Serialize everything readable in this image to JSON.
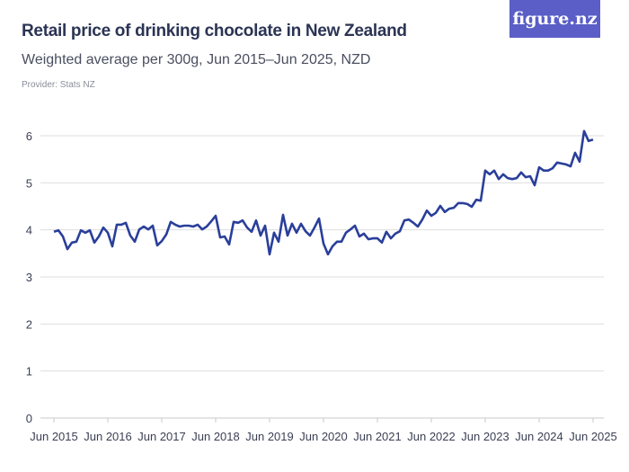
{
  "header": {
    "title": "Retail price of drinking chocolate in New Zealand",
    "subtitle": "Weighted average per 300g, Jun 2015–Jun 2025, NZD",
    "provider": "Provider: Stats NZ",
    "logo": "figure.nz"
  },
  "chart_data": {
    "type": "line",
    "title": "Retail price of drinking chocolate in New Zealand",
    "subtitle": "Weighted average per 300g, Jun 2015–Jun 2025, NZD",
    "x_start": "Jun 2015",
    "x_end": "Jun 2025",
    "frequency": "monthly",
    "x_tick_labels": [
      "Jun 2015",
      "Jun 2016",
      "Jun 2017",
      "Jun 2018",
      "Jun 2019",
      "Jun 2020",
      "Jun 2021",
      "Jun 2022",
      "Jun 2023",
      "Jun 2024",
      "Jun 2025"
    ],
    "y_ticks": [
      0,
      1,
      2,
      3,
      4,
      5,
      6
    ],
    "ylim": [
      0,
      6.2
    ],
    "grid": true,
    "line_color": "#2a3f9a",
    "values": [
      3.96,
      3.99,
      3.86,
      3.59,
      3.73,
      3.75,
      3.99,
      3.94,
      3.99,
      3.73,
      3.86,
      4.05,
      3.94,
      3.65,
      4.11,
      4.11,
      4.15,
      3.88,
      3.75,
      4.01,
      4.07,
      4.01,
      4.09,
      3.67,
      3.76,
      3.9,
      4.17,
      4.11,
      4.07,
      4.09,
      4.09,
      4.07,
      4.11,
      4.01,
      4.07,
      4.18,
      4.3,
      3.84,
      3.86,
      3.69,
      4.17,
      4.15,
      4.2,
      4.05,
      3.96,
      4.2,
      3.88,
      4.09,
      3.48,
      3.94,
      3.75,
      4.32,
      3.88,
      4.13,
      3.94,
      4.13,
      3.97,
      3.88,
      4.05,
      4.24,
      3.71,
      3.48,
      3.65,
      3.75,
      3.75,
      3.94,
      4.01,
      4.09,
      3.86,
      3.92,
      3.8,
      3.82,
      3.82,
      3.73,
      3.96,
      3.82,
      3.92,
      3.97,
      4.2,
      4.22,
      4.15,
      4.07,
      4.22,
      4.41,
      4.3,
      4.36,
      4.51,
      4.38,
      4.45,
      4.47,
      4.57,
      4.57,
      4.55,
      4.49,
      4.64,
      4.62,
      5.26,
      5.18,
      5.26,
      5.08,
      5.18,
      5.1,
      5.08,
      5.1,
      5.22,
      5.12,
      5.14,
      4.95,
      5.33,
      5.26,
      5.26,
      5.31,
      5.43,
      5.41,
      5.39,
      5.35,
      5.64,
      5.45,
      6.1,
      5.89,
      5.92
    ]
  }
}
